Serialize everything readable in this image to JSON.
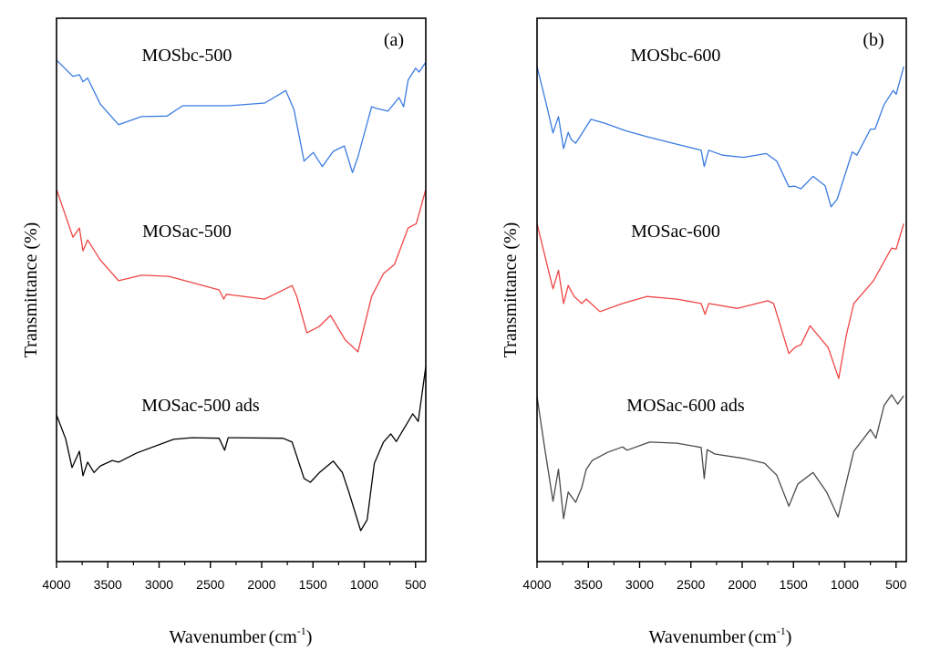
{
  "chart_data": [
    {
      "type": "line",
      "panel_label": "(a)",
      "xlabel": "Wavenumber (cm-1)",
      "xlabel_main": "Wavenumber",
      "xlabel_unit_base": "(cm",
      "xlabel_unit_exp": "-1",
      "xlabel_unit_close": ")",
      "ylabel": "Transmittance (%)",
      "xlim": [
        4000,
        400
      ],
      "ylim": [
        0,
        100
      ],
      "x_ticks": [
        4000,
        3500,
        3000,
        2500,
        2000,
        1500,
        1000,
        500
      ],
      "x_tick_labels": [
        "4000",
        "3500",
        "3000",
        "2500",
        "2000",
        "1500",
        "1000",
        "500"
      ],
      "grid": false,
      "series": [
        {
          "name": "MOSbc-500",
          "color": "#3a7be0",
          "x": [
            4000,
            3840,
            3777,
            3742,
            3697,
            3573,
            3395,
            3172,
            2923,
            2771,
            2326,
            1970,
            1765,
            1685,
            1587,
            1497,
            1409,
            1302,
            1195,
            1115,
            1061,
            928,
            883,
            768,
            661,
            616,
            572,
            500,
            465,
            400
          ],
          "y": [
            92.3,
            89.3,
            89.6,
            88.3,
            89,
            84.2,
            80.4,
            81.9,
            82,
            83.9,
            83.9,
            84.4,
            86.7,
            83.2,
            73.7,
            75.3,
            72.7,
            75.5,
            76.5,
            71.6,
            74.5,
            83.7,
            83.4,
            82.9,
            85.4,
            83.7,
            88.6,
            90.8,
            90.1,
            91.9
          ]
        },
        {
          "name": "MOSac-500",
          "color": "#f04545",
          "x": [
            4000,
            3840,
            3777,
            3742,
            3697,
            3573,
            3395,
            3172,
            2905,
            2415,
            2370,
            2344,
            1970,
            1703,
            1658,
            1560,
            1436,
            1329,
            1186,
            1061,
            928,
            812,
            705,
            572,
            492,
            400
          ],
          "y": [
            68.5,
            59.7,
            61.4,
            57.2,
            59.2,
            55.5,
            51.7,
            52.7,
            52.5,
            50,
            48.3,
            49.2,
            48.3,
            50.8,
            48.8,
            42.1,
            43.3,
            45.3,
            40.8,
            38.6,
            48.8,
            53,
            54.7,
            61.4,
            62.2,
            68.5
          ]
        },
        {
          "name": "MOSac-500 ads",
          "color": "#000000",
          "x": [
            4000,
            3911,
            3849,
            3777,
            3742,
            3697,
            3635,
            3573,
            3457,
            3395,
            3217,
            2860,
            2682,
            2415,
            2361,
            2326,
            1792,
            1703,
            1587,
            1525,
            1436,
            1302,
            1213,
            1150,
            1035,
            972,
            901,
            812,
            741,
            688,
            527,
            474,
            400
          ],
          "y": [
            27,
            22.6,
            17.3,
            20.3,
            15.8,
            18.3,
            16.4,
            17.6,
            18.6,
            18.3,
            20,
            22.5,
            22.8,
            22.7,
            20.5,
            22.8,
            22.7,
            22,
            15.3,
            14.6,
            16.4,
            18.5,
            16.4,
            12.8,
            5.7,
            7.7,
            18.1,
            22,
            23.5,
            22.1,
            27.2,
            25.8,
            35.9
          ]
        }
      ]
    },
    {
      "type": "line",
      "panel_label": "(b)",
      "xlabel": "Wavenumber (cm-1)",
      "xlabel_main": "Wavenumber",
      "xlabel_unit_base": "(cm",
      "xlabel_unit_exp": "-1",
      "xlabel_unit_close": ")",
      "ylabel": "Transmittance (%)",
      "xlim": [
        4000,
        400
      ],
      "ylim": [
        0,
        100
      ],
      "x_ticks": [
        4000,
        3500,
        3000,
        2500,
        2000,
        1500,
        1000,
        500
      ],
      "x_tick_labels": [
        "4000",
        "3500",
        "3000",
        "2500",
        "2000",
        "1500",
        "1000",
        "500"
      ],
      "grid": false,
      "series": [
        {
          "name": "MOSbc-600",
          "color": "#3a7be0",
          "x": [
            4000,
            3903,
            3844,
            3791,
            3741,
            3696,
            3667,
            3623,
            3564,
            3475,
            3343,
            3137,
            2930,
            2636,
            2400,
            2370,
            2326,
            2193,
            1987,
            1766,
            1663,
            1545,
            1486,
            1427,
            1309,
            1192,
            1133,
            1074,
            926,
            882,
            749,
            705,
            617,
            528,
            499,
            425
          ],
          "y": [
            91.1,
            83.7,
            78.9,
            81.9,
            76,
            79,
            77.7,
            77,
            78.7,
            81.4,
            80.7,
            79.3,
            78.2,
            76.8,
            75.7,
            72.7,
            75.7,
            74.8,
            74.4,
            75.1,
            73.7,
            69,
            69.1,
            68.6,
            70.9,
            69.2,
            65.3,
            66.7,
            75.4,
            74.8,
            79.6,
            79.6,
            84.1,
            86.7,
            86,
            91.1
          ]
        },
        {
          "name": "MOSac-600",
          "color": "#f04545",
          "x": [
            4000,
            3903,
            3844,
            3791,
            3741,
            3696,
            3638,
            3564,
            3520,
            3387,
            3166,
            2930,
            2636,
            2400,
            2362,
            2326,
            2046,
            1751,
            1693,
            1545,
            1480,
            1427,
            1339,
            1162,
            1059,
            986,
            912,
            720,
            543,
            499,
            425
          ],
          "y": [
            62.2,
            54.7,
            50.2,
            53.6,
            47.5,
            50.8,
            48.8,
            47.5,
            48.3,
            46,
            47.5,
            48.8,
            48.3,
            47.5,
            45.5,
            47.5,
            46.6,
            48,
            47.5,
            38.3,
            39.5,
            39.9,
            43.4,
            39.4,
            33.7,
            41.6,
            47.5,
            51.7,
            57.7,
            57.5,
            62.2
          ]
        },
        {
          "name": "MOSac-600 ads",
          "color": "#4a4a4a",
          "x": [
            4000,
            3926,
            3844,
            3791,
            3741,
            3696,
            3623,
            3564,
            3520,
            3461,
            3313,
            3166,
            3122,
            2901,
            2636,
            2400,
            2370,
            2341,
            2267,
            1987,
            1781,
            1663,
            1545,
            1457,
            1309,
            1177,
            1065,
            912,
            749,
            696,
            617,
            543,
            484,
            425
          ],
          "y": [
            30.4,
            21,
            11.1,
            17,
            7.9,
            12.8,
            10.9,
            13.6,
            17,
            18.6,
            20.1,
            21.1,
            20.5,
            22,
            21.8,
            21,
            15.3,
            20.6,
            19.8,
            19,
            18.1,
            15.9,
            10.2,
            14.3,
            16.4,
            12.8,
            8.2,
            20.3,
            24.3,
            22.7,
            28.7,
            30.7,
            29,
            30.5
          ]
        }
      ]
    }
  ]
}
